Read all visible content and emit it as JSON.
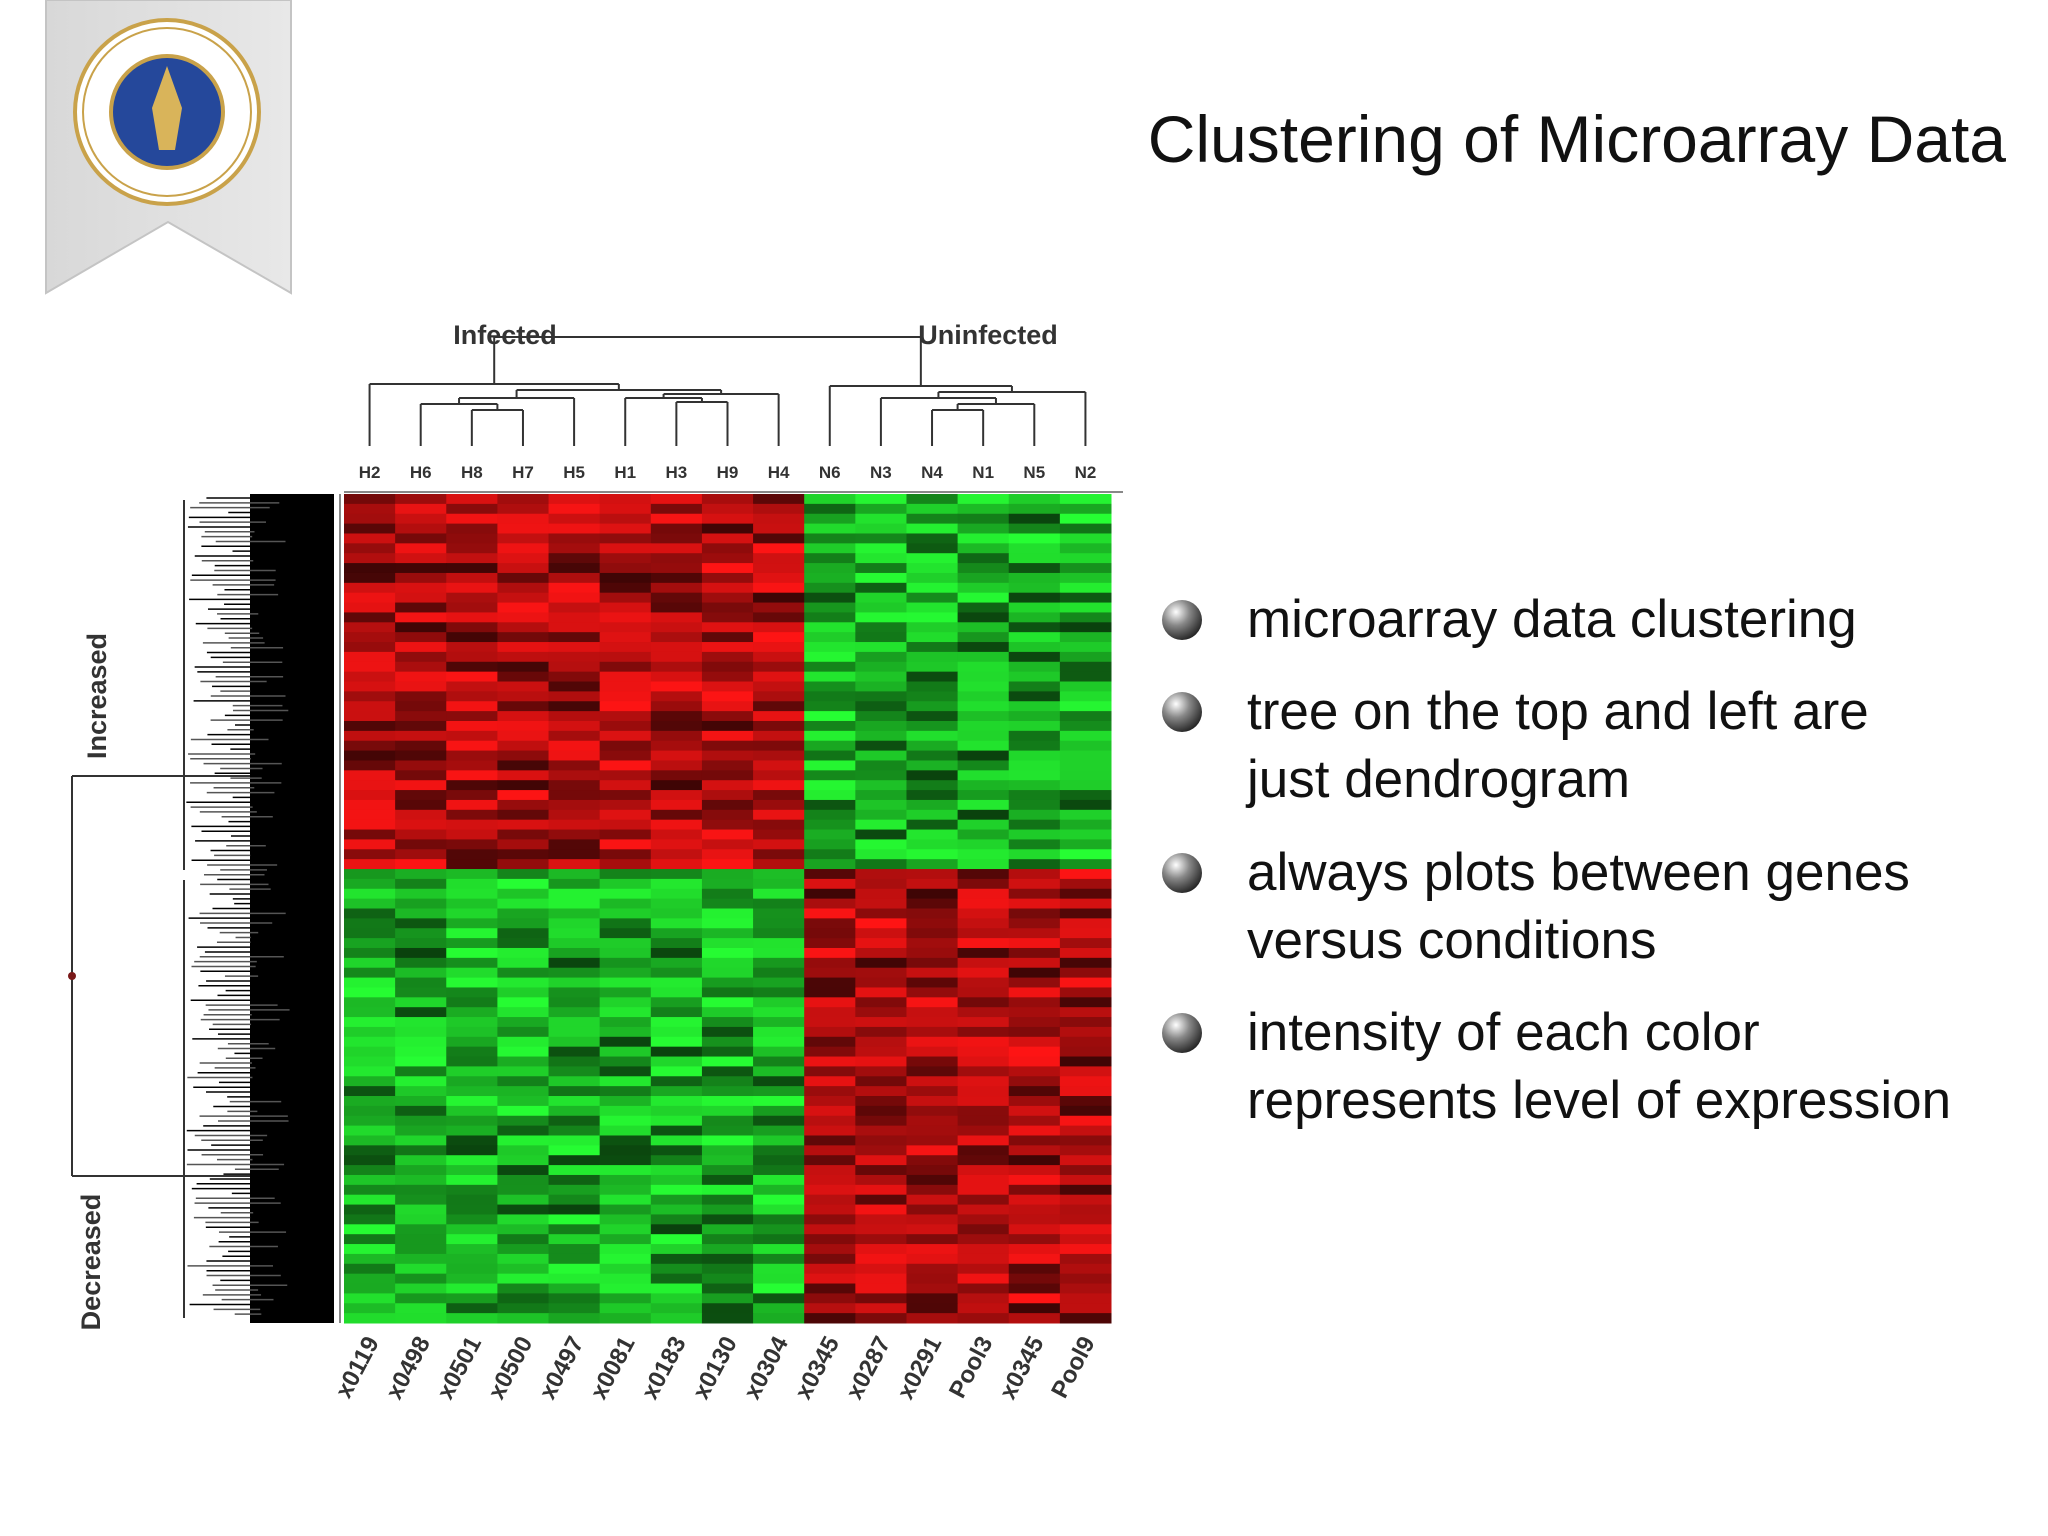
{
  "title": "Clustering of Microarray Data",
  "heatmap": {
    "groups": [
      "Infected",
      "Uninfected"
    ],
    "rows": [
      "Increased",
      "Decreased"
    ],
    "top_labels": [
      "H2",
      "H6",
      "H8",
      "H7",
      "H5",
      "H1",
      "H3",
      "H9",
      "H4",
      "N6",
      "N3",
      "N4",
      "N1",
      "N5",
      "N2"
    ],
    "bottom_labels": [
      "x0119",
      "x0498",
      "x0501",
      "x0500",
      "x0497",
      "x0081",
      "x0183",
      "x0130",
      "x0304",
      "x0345",
      "x0287",
      "x0291",
      "Pool3",
      "x0345",
      "Pool9"
    ]
  },
  "bullets": [
    [
      "microarray data clustering"
    ],
    [
      "tree on the top and left are",
      "just dendrogram"
    ],
    [
      "always plots between genes",
      "versus conditions"
    ],
    [
      "intensity of each color",
      "represents level of expression"
    ]
  ]
}
